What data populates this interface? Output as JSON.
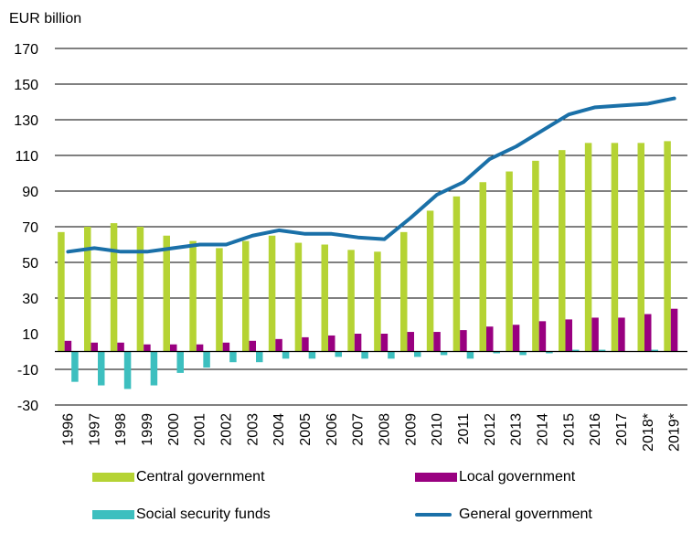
{
  "chart_data": {
    "type": "bar",
    "ylabel": "EUR billion",
    "ylim": [
      -30,
      170
    ],
    "yticks": [
      -30,
      -10,
      10,
      30,
      50,
      70,
      90,
      110,
      130,
      150,
      170
    ],
    "categories": [
      "1996",
      "1997",
      "1998",
      "1999",
      "2000",
      "2001",
      "2002",
      "2003",
      "2004",
      "2005",
      "2006",
      "2007",
      "2008",
      "2009",
      "2010",
      "2011",
      "2012",
      "2013",
      "2014",
      "2015",
      "2016",
      "2017",
      "2018*",
      "2019*"
    ],
    "grid": "horizontal",
    "legend_position": "bottom",
    "series": [
      {
        "name": "Central government",
        "kind": "bar",
        "color": "#b5d334",
        "values": [
          67,
          70,
          72,
          70,
          65,
          62,
          58,
          62,
          65,
          61,
          60,
          57,
          56,
          67,
          79,
          87,
          95,
          101,
          107,
          113,
          117,
          117,
          117,
          118
        ]
      },
      {
        "name": "Local government",
        "kind": "bar",
        "color": "#990080",
        "values": [
          6,
          5,
          5,
          4,
          4,
          4,
          5,
          6,
          7,
          8,
          9,
          10,
          10,
          11,
          11,
          12,
          14,
          15,
          17,
          18,
          19,
          19,
          21,
          24
        ]
      },
      {
        "name": "Social security funds",
        "kind": "bar",
        "color": "#3dbfbf",
        "values": [
          -17,
          -19,
          -21,
          -19,
          -12,
          -9,
          -6,
          -6,
          -4,
          -4,
          -3,
          -4,
          -4,
          -3,
          -2,
          -4,
          -1,
          -2,
          -1,
          1,
          1,
          0,
          1,
          0
        ]
      },
      {
        "name": "General government",
        "kind": "line",
        "color": "#1a70a8",
        "values": [
          56,
          58,
          56,
          56,
          58,
          60,
          60,
          65,
          68,
          66,
          66,
          64,
          63,
          75,
          88,
          95,
          108,
          115,
          124,
          133,
          137,
          138,
          139,
          142
        ]
      }
    ]
  }
}
